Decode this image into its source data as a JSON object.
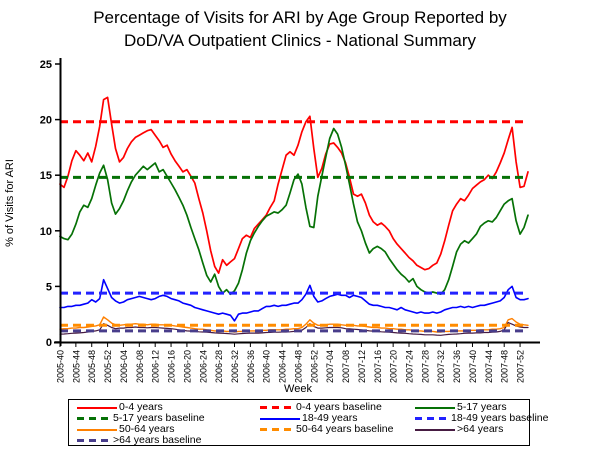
{
  "title": {
    "line1": "Percentage of Visits for ARI by Age Group Reported by",
    "line2": "DoD/VA Outpatient Clinics - National Summary"
  },
  "chart_data": {
    "type": "line",
    "title": "Percentage of Visits for ARI by Age Group Reported by DoD/VA Outpatient Clinics - National Summary",
    "xlabel": "Week",
    "ylabel": "% of Visits for ARI",
    "ylim": [
      0,
      25
    ],
    "yticks": [
      0,
      5,
      10,
      15,
      20,
      25
    ],
    "grid": false,
    "legend_position": "bottom",
    "n_points": 119,
    "x_tick_every": 4,
    "x_tick_labels": [
      "2005-40",
      "2005-44",
      "2005-48",
      "2005-52",
      "2006-04",
      "2006-08",
      "2006-12",
      "2006-16",
      "2006-20",
      "2006-24",
      "2006-28",
      "2006-32",
      "2006-36",
      "2006-40",
      "2006-44",
      "2006-48",
      "2006-52",
      "2007-04",
      "2007-08",
      "2007-12",
      "2007-16",
      "2007-20",
      "2007-24",
      "2007-28",
      "2007-32",
      "2007-36",
      "2007-40",
      "2007-44",
      "2007-48",
      "2007-52"
    ],
    "series": [
      {
        "name": "0-4 years",
        "color": "#FF0000",
        "width": 1.7,
        "values": [
          14.2,
          13.9,
          14.9,
          16.3,
          17.2,
          16.8,
          16.3,
          17.0,
          16.2,
          17.6,
          19.4,
          21.8,
          22.0,
          19.6,
          17.4,
          16.2,
          16.6,
          17.4,
          18.0,
          18.4,
          18.6,
          18.8,
          19.0,
          19.1,
          18.6,
          18.1,
          17.5,
          17.7,
          16.9,
          16.3,
          15.8,
          15.3,
          15.5,
          14.9,
          14.3,
          12.9,
          11.6,
          10.0,
          8.2,
          6.8,
          6.2,
          7.4,
          6.9,
          7.2,
          7.5,
          8.4,
          9.3,
          9.6,
          9.4,
          10.2,
          10.6,
          11.0,
          11.4,
          12.1,
          12.7,
          14.2,
          15.5,
          16.8,
          17.1,
          16.8,
          17.7,
          18.9,
          19.8,
          20.3,
          17.4,
          14.8,
          15.6,
          16.9,
          17.8,
          17.9,
          17.5,
          17.0,
          16.1,
          14.8,
          13.3,
          13.1,
          13.3,
          12.5,
          11.4,
          10.8,
          10.5,
          10.7,
          10.4,
          10.0,
          9.3,
          8.8,
          8.4,
          8.0,
          7.6,
          7.3,
          6.9,
          6.7,
          6.5,
          6.6,
          6.9,
          7.1,
          7.9,
          9.1,
          10.5,
          11.8,
          12.4,
          12.9,
          12.7,
          13.2,
          13.8,
          14.1,
          14.4,
          14.6,
          15.0,
          14.7,
          15.3,
          16.1,
          17.0,
          18.2,
          19.3,
          16.2,
          13.9,
          14.0,
          15.3
        ]
      },
      {
        "name": "5-17 years",
        "color": "#067106",
        "width": 1.7,
        "values": [
          9.5,
          9.3,
          9.2,
          9.7,
          10.6,
          11.7,
          12.3,
          12.1,
          12.9,
          14.1,
          15.2,
          15.9,
          14.6,
          12.5,
          11.5,
          12.0,
          12.7,
          13.6,
          14.4,
          15.0,
          15.4,
          15.8,
          15.5,
          15.8,
          16.1,
          15.3,
          15.5,
          14.9,
          14.3,
          13.7,
          13.0,
          12.3,
          11.4,
          10.3,
          9.3,
          8.3,
          7.1,
          6.0,
          5.4,
          6.1,
          5.0,
          4.4,
          4.7,
          4.3,
          4.6,
          5.3,
          6.5,
          8.0,
          9.1,
          9.8,
          10.4,
          10.9,
          11.3,
          11.5,
          11.7,
          11.6,
          11.9,
          12.3,
          13.4,
          14.6,
          15.1,
          14.2,
          12.1,
          10.4,
          10.3,
          13.1,
          14.9,
          16.6,
          18.3,
          19.2,
          18.7,
          17.5,
          15.9,
          14.2,
          12.4,
          10.8,
          10.0,
          8.9,
          8.0,
          8.4,
          8.6,
          8.4,
          8.1,
          7.5,
          7.0,
          6.5,
          6.1,
          5.8,
          5.4,
          5.7,
          5.0,
          4.7,
          4.5,
          4.4,
          4.5,
          4.4,
          4.3,
          4.7,
          5.6,
          6.8,
          8.1,
          8.8,
          9.1,
          8.9,
          9.3,
          9.7,
          10.4,
          10.7,
          10.9,
          10.8,
          11.2,
          11.8,
          12.4,
          12.7,
          12.9,
          10.9,
          9.7,
          10.3,
          11.4
        ]
      },
      {
        "name": "18-49 years",
        "color": "#0000FF",
        "width": 1.6,
        "values": [
          3.1,
          3.1,
          3.2,
          3.2,
          3.3,
          3.3,
          3.4,
          3.5,
          3.8,
          3.6,
          3.9,
          5.6,
          4.8,
          4.0,
          3.7,
          3.5,
          3.6,
          3.8,
          3.9,
          4.0,
          4.1,
          4.0,
          3.9,
          3.8,
          3.9,
          4.1,
          4.2,
          4.1,
          3.9,
          3.8,
          3.7,
          3.5,
          3.4,
          3.3,
          3.1,
          3.0,
          2.9,
          2.8,
          2.7,
          2.6,
          2.5,
          2.6,
          2.5,
          2.4,
          1.9,
          2.5,
          2.6,
          2.6,
          2.7,
          2.8,
          2.8,
          3.0,
          3.2,
          3.2,
          3.3,
          3.2,
          3.3,
          3.3,
          3.4,
          3.5,
          3.5,
          3.8,
          4.3,
          5.1,
          4.1,
          3.6,
          3.7,
          3.9,
          4.1,
          4.2,
          4.3,
          4.2,
          4.2,
          4.0,
          4.2,
          4.1,
          4.0,
          3.7,
          3.4,
          3.3,
          3.3,
          3.2,
          3.1,
          3.1,
          3.0,
          2.9,
          3.1,
          2.9,
          2.8,
          2.7,
          2.6,
          2.7,
          2.6,
          2.6,
          2.7,
          2.6,
          2.7,
          2.9,
          3.0,
          3.1,
          3.1,
          3.2,
          3.1,
          3.2,
          3.1,
          3.2,
          3.3,
          3.3,
          3.4,
          3.5,
          3.6,
          3.7,
          4.0,
          4.7,
          5.0,
          4.0,
          3.8,
          3.8,
          3.9
        ]
      },
      {
        "name": "50-64 years",
        "color": "#FF8000",
        "width": 1.4,
        "values": [
          1.15,
          1.2,
          1.2,
          1.25,
          1.25,
          1.3,
          1.3,
          1.35,
          1.4,
          1.45,
          1.55,
          2.25,
          2.0,
          1.7,
          1.55,
          1.5,
          1.55,
          1.6,
          1.6,
          1.65,
          1.6,
          1.6,
          1.55,
          1.6,
          1.6,
          1.55,
          1.55,
          1.5,
          1.5,
          1.45,
          1.4,
          1.35,
          1.3,
          1.25,
          1.2,
          1.15,
          1.15,
          1.1,
          1.05,
          1.0,
          1.0,
          1.0,
          0.95,
          0.95,
          0.9,
          0.95,
          0.95,
          1.0,
          1.0,
          1.0,
          1.0,
          1.05,
          1.05,
          1.1,
          1.1,
          1.1,
          1.1,
          1.15,
          1.15,
          1.2,
          1.2,
          1.3,
          1.6,
          2.0,
          1.7,
          1.5,
          1.5,
          1.55,
          1.6,
          1.6,
          1.6,
          1.55,
          1.5,
          1.5,
          1.5,
          1.45,
          1.45,
          1.4,
          1.35,
          1.3,
          1.3,
          1.25,
          1.25,
          1.2,
          1.2,
          1.15,
          1.15,
          1.1,
          1.1,
          1.05,
          1.0,
          1.0,
          0.95,
          0.95,
          0.95,
          0.9,
          0.9,
          0.95,
          0.95,
          1.0,
          1.0,
          1.0,
          1.0,
          1.05,
          1.05,
          1.05,
          1.1,
          1.1,
          1.1,
          1.15,
          1.15,
          1.2,
          1.3,
          2.0,
          2.1,
          1.8,
          1.6,
          1.55,
          1.5
        ]
      },
      {
        "name": ">64 years",
        "color": "#461B42",
        "width": 1.2,
        "values": [
          0.7,
          0.72,
          0.75,
          0.78,
          0.8,
          0.82,
          0.85,
          0.9,
          0.95,
          1.0,
          1.1,
          1.65,
          1.5,
          1.3,
          1.2,
          1.25,
          1.25,
          1.3,
          1.3,
          1.35,
          1.3,
          1.3,
          1.28,
          1.3,
          1.3,
          1.28,
          1.25,
          1.22,
          1.2,
          1.15,
          1.1,
          1.05,
          1.0,
          0.98,
          0.95,
          0.92,
          0.9,
          0.88,
          0.85,
          0.82,
          0.8,
          0.78,
          0.76,
          0.74,
          0.7,
          0.74,
          0.76,
          0.78,
          0.8,
          0.8,
          0.8,
          0.82,
          0.85,
          0.86,
          0.88,
          0.88,
          0.9,
          0.9,
          0.92,
          0.95,
          1.0,
          1.05,
          1.3,
          1.65,
          1.4,
          1.25,
          1.25,
          1.28,
          1.3,
          1.3,
          1.3,
          1.28,
          1.2,
          1.18,
          1.15,
          1.12,
          1.1,
          1.05,
          1.0,
          0.98,
          0.95,
          0.92,
          0.9,
          0.88,
          0.85,
          0.82,
          0.8,
          0.78,
          0.75,
          0.72,
          0.7,
          0.68,
          0.65,
          0.65,
          0.65,
          0.62,
          0.6,
          0.65,
          0.68,
          0.7,
          0.72,
          0.75,
          0.78,
          0.8,
          0.8,
          0.82,
          0.82,
          0.85,
          0.85,
          0.88,
          0.9,
          0.95,
          1.1,
          1.75,
          1.6,
          1.45,
          1.35,
          1.3,
          1.3
        ]
      }
    ],
    "baselines": [
      {
        "name": "0-4 years baseline",
        "color": "#FF0000",
        "value": 19.8
      },
      {
        "name": "5-17 years baseline",
        "color": "#067106",
        "value": 14.8
      },
      {
        "name": "18-49 years baseline",
        "color": "#2222FF",
        "value": 4.4
      },
      {
        "name": "50-64 years baseline",
        "color": "#FF8C00",
        "value": 1.5
      },
      {
        "name": ">64 years baseline",
        "color": "#483D8B",
        "value": 1.0
      }
    ]
  },
  "legend": {
    "items": [
      {
        "label": "0-4 years",
        "color": "#FF0000",
        "line": "solid"
      },
      {
        "label": "0-4 years baseline",
        "color": "#FF0000",
        "line": "dashed"
      },
      {
        "label": "5-17 years",
        "color": "#067106",
        "line": "solid"
      },
      {
        "label": "5-17 years baseline",
        "color": "#067106",
        "line": "dashed"
      },
      {
        "label": "18-49 years",
        "color": "#0000FF",
        "line": "solid"
      },
      {
        "label": "18-49 years baseline",
        "color": "#2222FF",
        "line": "dashed"
      },
      {
        "label": "50-64 years",
        "color": "#FF8000",
        "line": "solid"
      },
      {
        "label": "50-64 years baseline",
        "color": "#FF8C00",
        "line": "dashed"
      },
      {
        "label": ">64 years",
        "color": "#461B42",
        "line": "solid"
      },
      {
        "label": ">64 years baseline",
        "color": "#483D8B",
        "line": "dashed"
      }
    ]
  }
}
